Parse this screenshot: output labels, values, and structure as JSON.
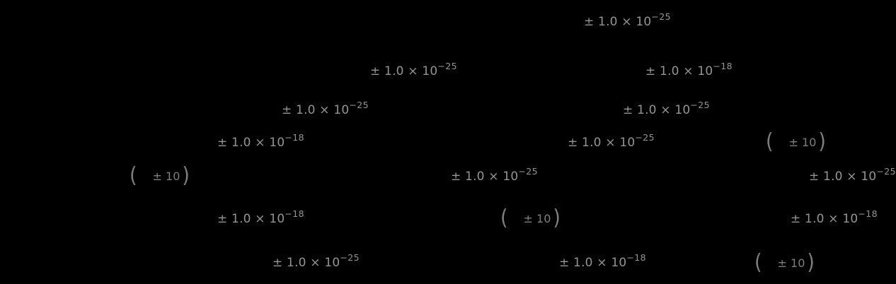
{
  "colors": {
    "background": "#000000",
    "sci_text_gray": "#949494",
    "paren_text_gray": "#7e7e7e"
  },
  "annotations": [
    {
      "kind": "sci",
      "base": "± 1.0 × 10",
      "exp": "−25"
    },
    {
      "kind": "sci",
      "base": "± 1.0 × 10",
      "exp": "−25"
    },
    {
      "kind": "sci",
      "base": "± 1.0 × 10",
      "exp": "−18"
    },
    {
      "kind": "sci",
      "base": "± 1.0 × 10",
      "exp": "−25"
    },
    {
      "kind": "sci",
      "base": "± 1.0 × 10",
      "exp": "−25"
    },
    {
      "kind": "sci",
      "base": "± 1.0 × 10",
      "exp": "−18"
    },
    {
      "kind": "sci",
      "base": "± 1.0 × 10",
      "exp": "−25"
    },
    {
      "kind": "paren",
      "open": "(",
      "inner": "± 10",
      "close": ")"
    },
    {
      "kind": "paren",
      "open": "(",
      "inner": "± 10",
      "close": ")"
    },
    {
      "kind": "sci",
      "base": "± 1.0 × 10",
      "exp": "−25"
    },
    {
      "kind": "sci",
      "base": "± 1.0 × 10",
      "exp": "−25"
    },
    {
      "kind": "sci",
      "base": "± 1.0 × 10",
      "exp": "−18"
    },
    {
      "kind": "paren",
      "open": "(",
      "inner": "± 10",
      "close": ")"
    },
    {
      "kind": "sci",
      "base": "± 1.0 × 10",
      "exp": "−18"
    },
    {
      "kind": "sci",
      "base": "± 1.0 × 10",
      "exp": "−25"
    },
    {
      "kind": "sci",
      "base": "± 1.0 × 10",
      "exp": "−18"
    },
    {
      "kind": "paren",
      "open": "(",
      "inner": "± 10",
      "close": ")"
    }
  ]
}
